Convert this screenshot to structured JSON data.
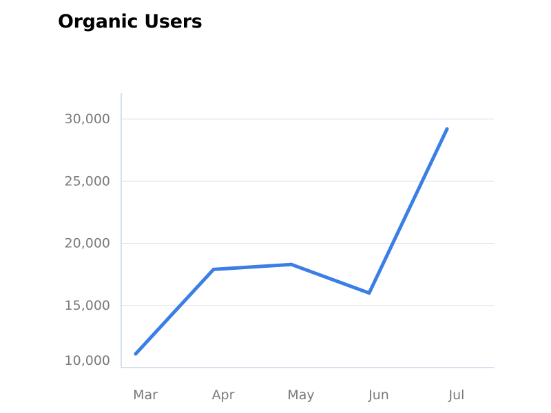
{
  "chart_data": {
    "type": "line",
    "title": "Organic Users",
    "xlabel": "",
    "ylabel": "",
    "categories": [
      "Mar",
      "Apr",
      "May",
      "Jun",
      "Jul"
    ],
    "series": [
      {
        "values": [
          11100,
          17900,
          18300,
          16000,
          29200
        ]
      }
    ],
    "yticks": [
      10000,
      15000,
      20000,
      25000,
      30000
    ],
    "ytick_labels": [
      "10,000",
      "15,000",
      "20,000",
      "25,000",
      "30,000"
    ],
    "ylim": [
      10000,
      32000
    ],
    "grid": "horizontal",
    "legend": "none",
    "colors": {
      "line": "#3a7ee6",
      "grid": "#dde4ee",
      "axis": "#c9d6e8",
      "tick_text": "#7a7a7a"
    }
  }
}
